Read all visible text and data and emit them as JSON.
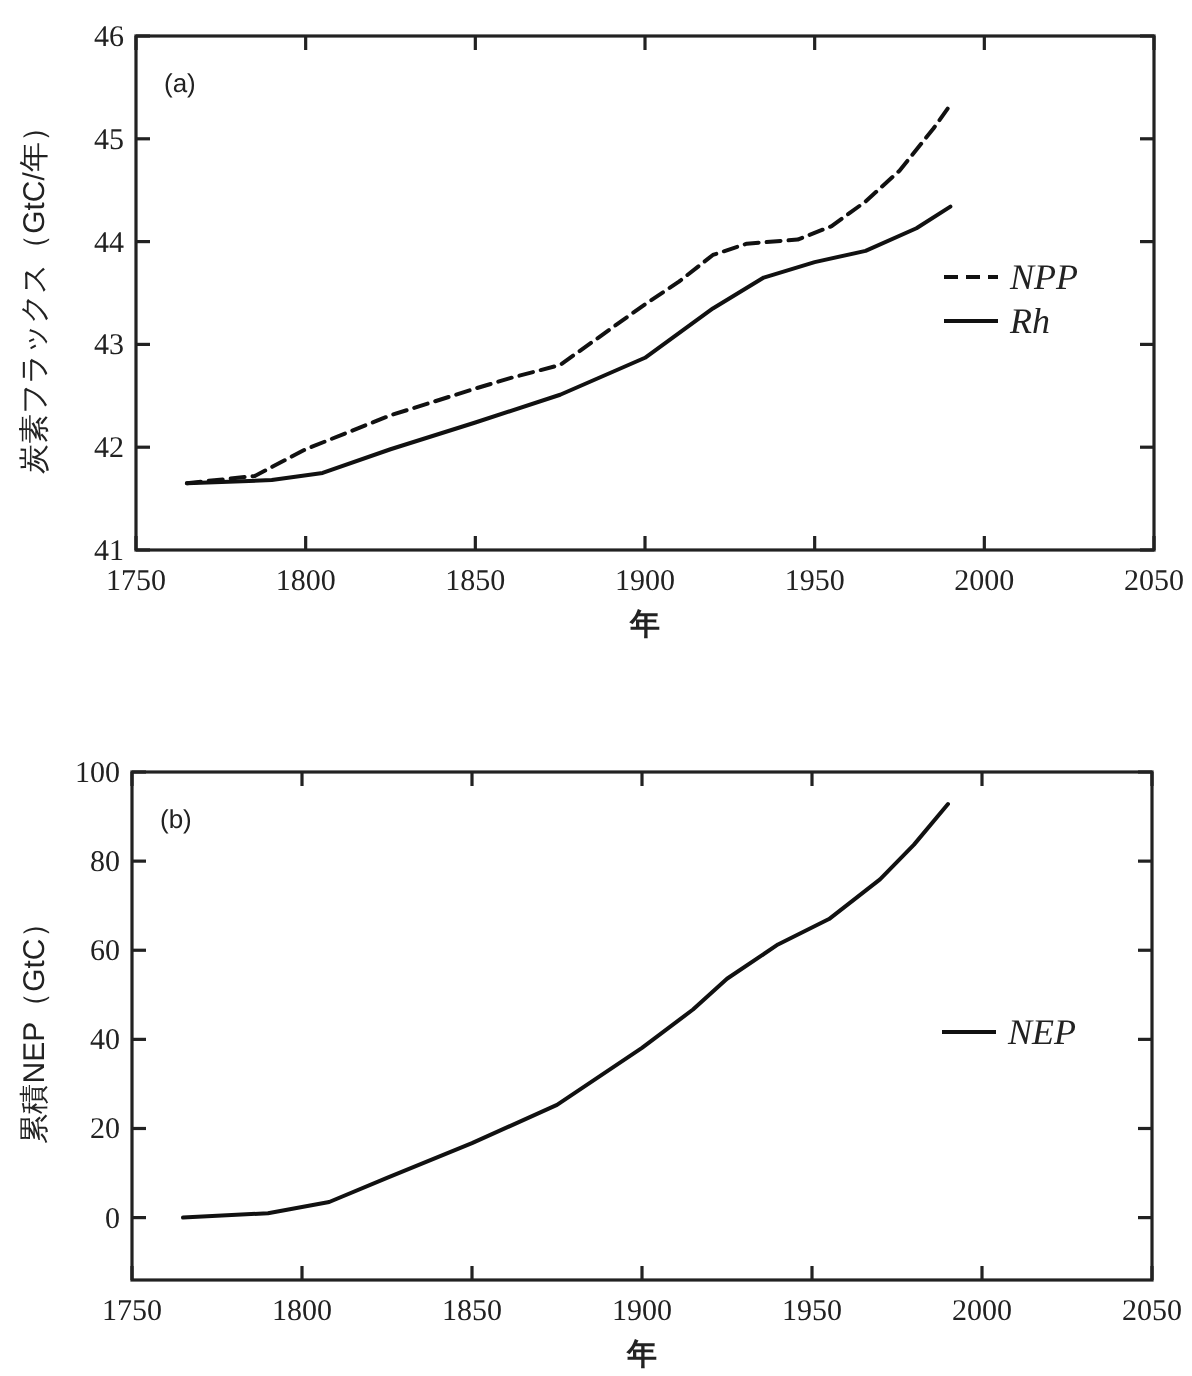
{
  "chart_data": [
    {
      "type": "line",
      "xlabel": "年",
      "ylabel": "炭素フラックス（GtC/年）",
      "annotations": [
        "(a)"
      ],
      "xlim": [
        1750,
        2050
      ],
      "xticks": [
        1750,
        1800,
        1850,
        1900,
        1950,
        2000,
        2050
      ],
      "ylim": [
        41,
        46
      ],
      "yticks": [
        41,
        42,
        43,
        44,
        45,
        46
      ],
      "legend": "right",
      "grid": false,
      "series": [
        {
          "name": "NPP",
          "color": "#111111",
          "line_style": "dashed",
          "x": [
            1765,
            1785,
            1800,
            1825,
            1850,
            1860,
            1875,
            1900,
            1910,
            1920,
            1930,
            1945,
            1955,
            1965,
            1975,
            1985,
            1990
          ],
          "values": [
            41.65,
            41.72,
            41.98,
            42.31,
            42.57,
            42.67,
            42.8,
            43.39,
            43.61,
            43.87,
            43.98,
            44.02,
            44.15,
            44.39,
            44.69,
            45.1,
            45.33
          ]
        },
        {
          "name": "Rh",
          "color": "#111111",
          "line_style": "solid",
          "x": [
            1765,
            1790,
            1805,
            1825,
            1850,
            1875,
            1900,
            1920,
            1935,
            1950,
            1965,
            1980,
            1990
          ],
          "values": [
            41.65,
            41.68,
            41.75,
            41.98,
            42.24,
            42.51,
            42.87,
            43.35,
            43.65,
            43.8,
            43.91,
            44.13,
            44.34
          ]
        }
      ]
    },
    {
      "type": "line",
      "xlabel": "年",
      "ylabel": "累積NEP（GtC）",
      "annotations": [
        "(b)"
      ],
      "xlim": [
        1750,
        2050
      ],
      "xticks": [
        1750,
        1800,
        1850,
        1900,
        1950,
        2000,
        2050
      ],
      "ylim": [
        -14,
        100
      ],
      "yticks": [
        0,
        20,
        40,
        60,
        80,
        100
      ],
      "legend": "right",
      "grid": false,
      "series": [
        {
          "name": "NEP",
          "color": "#111111",
          "line_style": "solid",
          "x": [
            1765,
            1790,
            1808,
            1825,
            1850,
            1875,
            1900,
            1915,
            1925,
            1940,
            1955,
            1970,
            1980,
            1990
          ],
          "values": [
            0,
            1,
            3.5,
            8.9,
            16.7,
            25.3,
            38.1,
            46.7,
            53.6,
            61.3,
            67,
            75.9,
            83.7,
            92.8
          ]
        }
      ]
    }
  ]
}
